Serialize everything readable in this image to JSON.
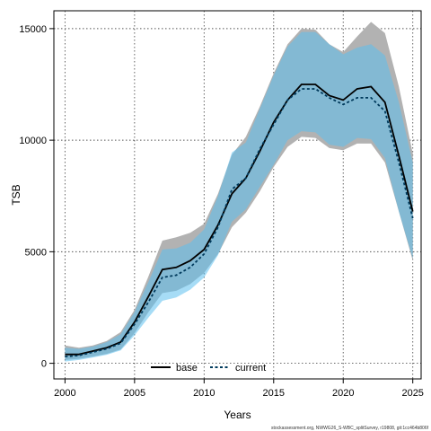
{
  "chart_data": {
    "type": "area",
    "title": "",
    "xlabel": "Years",
    "ylabel": "TSB",
    "xlim": [
      1999.2,
      2025.6
    ],
    "ylim": [
      -700,
      15800
    ],
    "x_ticks": [
      2000,
      2005,
      2010,
      2015,
      2020,
      2025
    ],
    "y_ticks": [
      0,
      5000,
      10000,
      15000
    ],
    "x_tick_labels": [
      "2000",
      "2005",
      "2010",
      "2015",
      "2020",
      "2025"
    ],
    "y_tick_labels": [
      "0",
      "5000",
      "10000",
      "15000"
    ],
    "grid": true,
    "legend_position": "bottom-center",
    "x": [
      2000,
      2001,
      2002,
      2003,
      2004,
      2005,
      2006,
      2007,
      2008,
      2009,
      2010,
      2011,
      2012,
      2013,
      2014,
      2015,
      2016,
      2017,
      2018,
      2019,
      2020,
      2021,
      2022,
      2023,
      2024,
      2025
    ],
    "series": [
      {
        "name": "base",
        "color": "#000000",
        "band_color": "#b2b2b2",
        "values": [
          400,
          400,
          550,
          700,
          950,
          1850,
          3000,
          4200,
          4300,
          4600,
          5100,
          6200,
          7600,
          8300,
          9500,
          10800,
          11800,
          12500,
          12500,
          12000,
          11800,
          12300,
          12400,
          11700,
          9300,
          6800
        ],
        "lower": [
          150,
          200,
          300,
          420,
          620,
          1350,
          2300,
          3150,
          3250,
          3550,
          4050,
          4900,
          6100,
          6750,
          7700,
          8800,
          9700,
          10150,
          10100,
          9650,
          9550,
          9850,
          9850,
          9000,
          6800,
          4600
        ],
        "upper": [
          800,
          700,
          800,
          1000,
          1400,
          2400,
          3900,
          5500,
          5650,
          5850,
          6250,
          7600,
          9350,
          10150,
          11500,
          13000,
          14300,
          15000,
          14950,
          14300,
          13950,
          14650,
          15300,
          14800,
          12400,
          9400
        ]
      },
      {
        "name": "current",
        "color": "#003a5c",
        "band_color": "#5dc0ee",
        "values": [
          300,
          350,
          500,
          650,
          900,
          1750,
          2750,
          3850,
          3950,
          4300,
          4900,
          6100,
          7800,
          8300,
          9600,
          10700,
          11800,
          12300,
          12300,
          11900,
          11600,
          11900,
          11900,
          11300,
          9000,
          6500
        ],
        "lower": [
          80,
          150,
          260,
          380,
          580,
          1250,
          2050,
          2800,
          2950,
          3300,
          3850,
          4850,
          6350,
          6900,
          7900,
          8900,
          10000,
          10400,
          10350,
          9800,
          9700,
          10100,
          10050,
          9200,
          6800,
          4700
        ],
        "upper": [
          700,
          650,
          750,
          950,
          1300,
          2300,
          3650,
          5100,
          5150,
          5400,
          6000,
          7500,
          9450,
          9900,
          11400,
          12900,
          14200,
          14850,
          14850,
          14300,
          13850,
          14150,
          14300,
          13800,
          11700,
          9000
        ]
      }
    ],
    "footer": "stockassessment.org, NWWG26_S-WBC_splitSurvey, r19808, git:1cc464b806f"
  }
}
